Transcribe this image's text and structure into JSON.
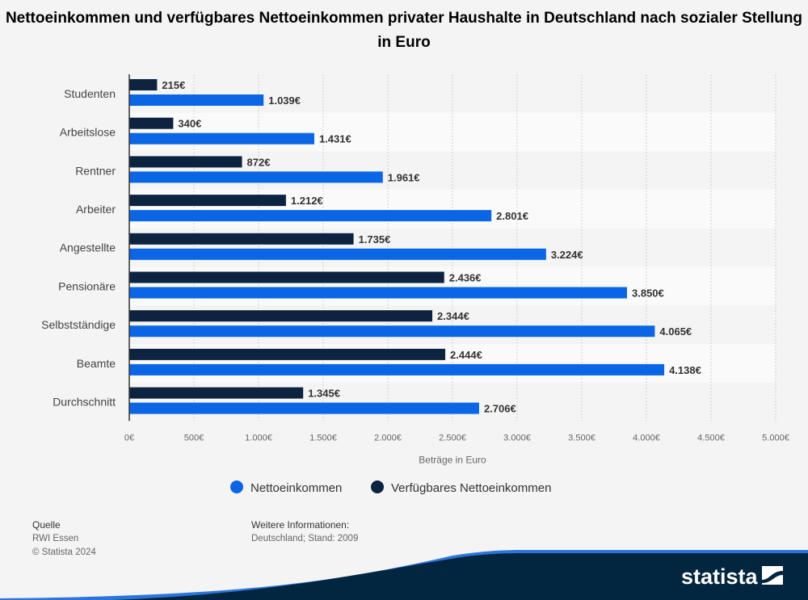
{
  "chart_data": {
    "type": "bar",
    "orientation": "horizontal",
    "title": "Nettoeinkommen und verfügbares Nettoeinkommen privater Haushalte in Deutschland nach sozialer Stellung in Euro",
    "categories": [
      "Studenten",
      "Arbeitslose",
      "Rentner",
      "Arbeiter",
      "Angestellte",
      "Pensionäre",
      "Selbstständige",
      "Beamte",
      "Durchschnitt"
    ],
    "series": [
      {
        "name": "Verfügbares Nettoeinkommen",
        "color": "#0d2441",
        "values": [
          215,
          340,
          872,
          1212,
          1735,
          2436,
          2344,
          2444,
          1345
        ],
        "labels": [
          "215€",
          "340€",
          "872€",
          "1.212€",
          "1.735€",
          "2.436€",
          "2.344€",
          "2.444€",
          "1.345€"
        ]
      },
      {
        "name": "Nettoeinkommen",
        "color": "#0a66e4",
        "values": [
          1039,
          1431,
          1961,
          2801,
          3224,
          3850,
          4065,
          4138,
          2706
        ],
        "labels": [
          "1.039€",
          "1.431€",
          "1.961€",
          "2.801€",
          "3.224€",
          "3.850€",
          "4.065€",
          "4.138€",
          "2.706€"
        ]
      }
    ],
    "xlabel": "Beträge in Euro",
    "xlim": [
      0,
      5000
    ],
    "xticks": [
      0,
      500,
      1000,
      1500,
      2000,
      2500,
      3000,
      3500,
      4000,
      4500,
      5000
    ],
    "xtick_labels": [
      "0€",
      "500€",
      "1.000€",
      "1.500€",
      "2.000€",
      "2.500€",
      "3.000€",
      "3.500€",
      "4.000€",
      "4.500€",
      "5.000€"
    ],
    "grid": true,
    "legend_position": "bottom",
    "legend": [
      "Nettoeinkommen",
      "Verfügbares Nettoeinkommen"
    ]
  },
  "footer": {
    "source_label": "Quelle",
    "source": "RWI Essen",
    "copyright": "© Statista 2024",
    "info_label": "Weitere Informationen:",
    "info": "Deutschland; Stand: 2009"
  },
  "logo": {
    "text": "statista"
  }
}
